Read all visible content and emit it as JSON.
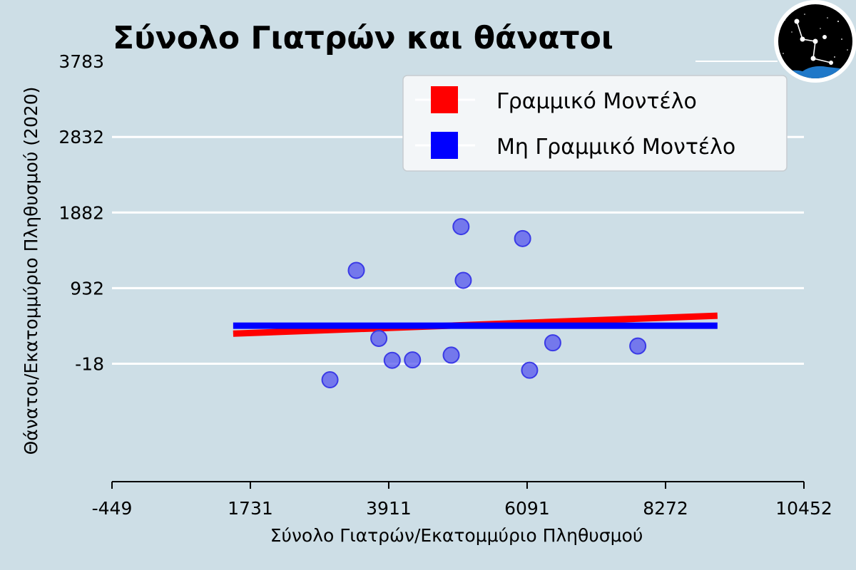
{
  "chart_data": {
    "type": "scatter",
    "title": "Σύνολο Γιατρών και θάνατοι",
    "xlabel": "Σύνολο Γιατρών/Εκατομμύριο Πληθυσμού",
    "ylabel": "Θάνατοι/Εκατομμύριο Πληθυσμού (2020)",
    "xlim": [
      -449,
      10452
    ],
    "ylim": [
      -1500,
      3783
    ],
    "xticks": [
      -449,
      1731,
      3911,
      6091,
      8272,
      10452
    ],
    "xtick_labels": [
      "-449",
      "1731",
      "3911",
      "6091",
      "8272",
      "10452"
    ],
    "yticks": [
      -18,
      932,
      1882,
      2832,
      3783
    ],
    "ytick_labels": [
      "-18",
      "932",
      "1882",
      "2832",
      "3783"
    ],
    "grid": "y-major",
    "legend_position": "top-right",
    "series": [
      {
        "name": "Γραμμικό Μοντέλο",
        "kind": "line",
        "color": "#ff0000",
        "x": [
          1460,
          9090
        ],
        "y": [
          360,
          585
        ]
      },
      {
        "name": "Μη Γραμμικό Μοντέλο",
        "kind": "line",
        "color": "#0000ff",
        "x": [
          1460,
          9090
        ],
        "y": [
          460,
          460
        ]
      },
      {
        "name": "",
        "kind": "scatter",
        "color": "#5555ee",
        "x": [
          3400,
          2985,
          3755,
          3965,
          4285,
          4895,
          5050,
          5085,
          6020,
          6130,
          6495,
          7835
        ],
        "y": [
          1155,
          -220,
          300,
          25,
          30,
          90,
          1705,
          1030,
          1555,
          -100,
          245,
          205
        ]
      }
    ]
  },
  "logo": {
    "name": "constellation-logo",
    "sky_color": "#000000",
    "ground_color": "#1f78c8"
  }
}
